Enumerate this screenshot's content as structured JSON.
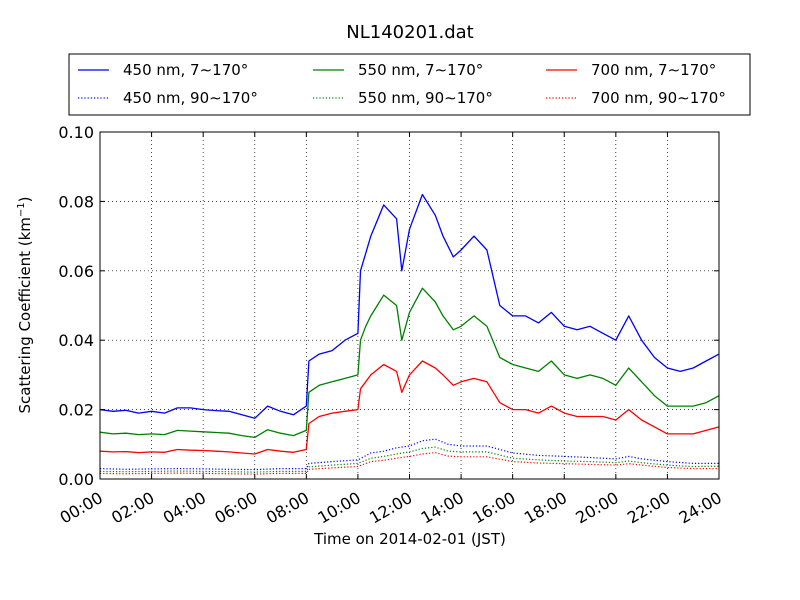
{
  "chart_data": {
    "type": "line",
    "title": "NL140201.dat",
    "xlabel": "Time on 2014-02-01 (JST)",
    "ylabel_main": "Scattering Coefficient (km",
    "ylabel_sup": "−1",
    "ylabel_end": ")",
    "xlim": [
      0,
      24
    ],
    "ylim": [
      0,
      0.1
    ],
    "xticks": [
      0,
      2,
      4,
      6,
      8,
      10,
      12,
      14,
      16,
      18,
      20,
      22,
      24
    ],
    "xtick_labels": [
      "00:00",
      "02:00",
      "04:00",
      "06:00",
      "08:00",
      "10:00",
      "12:00",
      "14:00",
      "16:00",
      "18:00",
      "20:00",
      "22:00",
      "24:00"
    ],
    "yticks": [
      0,
      0.02,
      0.04,
      0.06,
      0.08,
      0.1
    ],
    "ytick_labels": [
      "0.00",
      "0.02",
      "0.04",
      "0.06",
      "0.08",
      "0.10"
    ],
    "grid": true,
    "legend_position": "top, above plot",
    "series": [
      {
        "name": "450 nm, 7∼170°",
        "color": "#0000ff",
        "style": "solid",
        "x": [
          0,
          0.5,
          1,
          1.5,
          2,
          2.5,
          3,
          3.5,
          4,
          4.5,
          5,
          5.5,
          6,
          6.5,
          7,
          7.5,
          8,
          8.1,
          8.5,
          9,
          9.5,
          10,
          10.1,
          10.3,
          10.5,
          11,
          11.5,
          11.7,
          12,
          12.5,
          13,
          13.3,
          13.7,
          14,
          14.5,
          15,
          15.5,
          16,
          16.5,
          17,
          17.5,
          18,
          18.5,
          19,
          19.5,
          20,
          20.5,
          21,
          21.5,
          22,
          22.5,
          23,
          23.5,
          24
        ],
        "y": [
          0.02,
          0.0195,
          0.0198,
          0.019,
          0.0195,
          0.019,
          0.0205,
          0.0205,
          0.02,
          0.0197,
          0.0195,
          0.0185,
          0.0175,
          0.021,
          0.0195,
          0.0185,
          0.021,
          0.034,
          0.036,
          0.037,
          0.04,
          0.042,
          0.06,
          0.065,
          0.07,
          0.079,
          0.075,
          0.06,
          0.072,
          0.082,
          0.076,
          0.07,
          0.064,
          0.066,
          0.07,
          0.066,
          0.05,
          0.047,
          0.047,
          0.045,
          0.048,
          0.044,
          0.043,
          0.044,
          0.042,
          0.04,
          0.047,
          0.04,
          0.035,
          0.032,
          0.031,
          0.032,
          0.034,
          0.036
        ]
      },
      {
        "name": "550 nm, 7∼170°",
        "color": "#008000",
        "style": "solid",
        "x": [
          0,
          0.5,
          1,
          1.5,
          2,
          2.5,
          3,
          3.5,
          4,
          4.5,
          5,
          5.5,
          6,
          6.5,
          7,
          7.5,
          8,
          8.1,
          8.5,
          9,
          9.5,
          10,
          10.1,
          10.3,
          10.5,
          11,
          11.5,
          11.7,
          12,
          12.5,
          13,
          13.3,
          13.7,
          14,
          14.5,
          15,
          15.5,
          16,
          16.5,
          17,
          17.5,
          18,
          18.5,
          19,
          19.5,
          20,
          20.5,
          21,
          21.5,
          22,
          22.5,
          23,
          23.5,
          24
        ],
        "y": [
          0.0135,
          0.013,
          0.0132,
          0.0128,
          0.013,
          0.0128,
          0.014,
          0.0138,
          0.0136,
          0.0134,
          0.0132,
          0.0125,
          0.012,
          0.0142,
          0.0132,
          0.0125,
          0.014,
          0.025,
          0.027,
          0.028,
          0.029,
          0.03,
          0.04,
          0.044,
          0.047,
          0.053,
          0.05,
          0.04,
          0.048,
          0.055,
          0.051,
          0.047,
          0.043,
          0.044,
          0.047,
          0.044,
          0.035,
          0.033,
          0.032,
          0.031,
          0.034,
          0.03,
          0.029,
          0.03,
          0.029,
          0.027,
          0.032,
          0.028,
          0.024,
          0.021,
          0.021,
          0.021,
          0.022,
          0.024
        ]
      },
      {
        "name": "700 nm, 7∼170°",
        "color": "#ff0000",
        "style": "solid",
        "x": [
          0,
          0.5,
          1,
          1.5,
          2,
          2.5,
          3,
          3.5,
          4,
          4.5,
          5,
          5.5,
          6,
          6.5,
          7,
          7.5,
          8,
          8.1,
          8.5,
          9,
          9.5,
          10,
          10.1,
          10.3,
          10.5,
          11,
          11.5,
          11.7,
          12,
          12.5,
          13,
          13.3,
          13.7,
          14,
          14.5,
          15,
          15.5,
          16,
          16.5,
          17,
          17.5,
          18,
          18.5,
          19,
          19.5,
          20,
          20.5,
          21,
          21.5,
          22,
          22.5,
          23,
          23.5,
          24
        ],
        "y": [
          0.008,
          0.0078,
          0.0079,
          0.0076,
          0.0078,
          0.0077,
          0.0085,
          0.0083,
          0.0082,
          0.008,
          0.0078,
          0.0075,
          0.0072,
          0.0085,
          0.008,
          0.0077,
          0.0085,
          0.016,
          0.018,
          0.019,
          0.0195,
          0.02,
          0.026,
          0.028,
          0.03,
          0.033,
          0.031,
          0.025,
          0.03,
          0.034,
          0.032,
          0.03,
          0.027,
          0.028,
          0.029,
          0.028,
          0.022,
          0.02,
          0.02,
          0.019,
          0.021,
          0.019,
          0.018,
          0.018,
          0.018,
          0.017,
          0.02,
          0.017,
          0.015,
          0.013,
          0.013,
          0.013,
          0.014,
          0.015
        ]
      },
      {
        "name": "450 nm, 90∼170°",
        "color": "#0000ff",
        "style": "dotted",
        "x": [
          0,
          1,
          2,
          3,
          4,
          5,
          6,
          7,
          8,
          8.1,
          9,
          10,
          10.5,
          11,
          11.5,
          12,
          12.5,
          13,
          13.5,
          14,
          15,
          16,
          17,
          18,
          19,
          20,
          20.5,
          21,
          22,
          23,
          24
        ],
        "y": [
          0.003,
          0.0028,
          0.0029,
          0.003,
          0.0029,
          0.0028,
          0.0027,
          0.003,
          0.003,
          0.0045,
          0.005,
          0.0055,
          0.0075,
          0.008,
          0.009,
          0.0095,
          0.011,
          0.0115,
          0.01,
          0.0095,
          0.0095,
          0.0075,
          0.0068,
          0.0065,
          0.0062,
          0.0058,
          0.0065,
          0.0058,
          0.005,
          0.0045,
          0.0045
        ]
      },
      {
        "name": "550 nm, 90∼170°",
        "color": "#008000",
        "style": "dotted",
        "x": [
          0,
          1,
          2,
          3,
          4,
          5,
          6,
          7,
          8,
          8.1,
          9,
          10,
          10.5,
          11,
          11.5,
          12,
          12.5,
          13,
          13.5,
          14,
          15,
          16,
          17,
          18,
          19,
          20,
          20.5,
          21,
          22,
          23,
          24
        ],
        "y": [
          0.0022,
          0.0021,
          0.0022,
          0.0023,
          0.0022,
          0.0021,
          0.002,
          0.0022,
          0.0022,
          0.0035,
          0.004,
          0.0045,
          0.006,
          0.0065,
          0.0072,
          0.0078,
          0.0088,
          0.0092,
          0.008,
          0.0078,
          0.0078,
          0.006,
          0.0055,
          0.0052,
          0.005,
          0.0047,
          0.0052,
          0.0047,
          0.004,
          0.0036,
          0.0037
        ]
      },
      {
        "name": "700 nm, 90∼170°",
        "color": "#ff0000",
        "style": "dotted",
        "x": [
          0,
          1,
          2,
          3,
          4,
          5,
          6,
          7,
          8,
          8.1,
          9,
          10,
          10.5,
          11,
          11.5,
          12,
          12.5,
          13,
          13.5,
          14,
          15,
          16,
          17,
          18,
          19,
          20,
          20.5,
          21,
          22,
          23,
          24
        ],
        "y": [
          0.0016,
          0.0015,
          0.0016,
          0.0017,
          0.0016,
          0.0015,
          0.0014,
          0.0016,
          0.0016,
          0.0028,
          0.0032,
          0.0036,
          0.005,
          0.0054,
          0.006,
          0.0065,
          0.0072,
          0.0076,
          0.0066,
          0.0064,
          0.0064,
          0.005,
          0.0046,
          0.0044,
          0.0042,
          0.004,
          0.0044,
          0.004,
          0.0033,
          0.003,
          0.003
        ]
      }
    ]
  }
}
